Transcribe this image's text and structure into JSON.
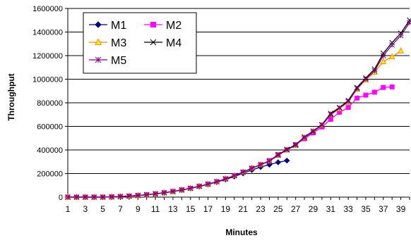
{
  "chart_data": {
    "type": "line",
    "title": "",
    "xlabel": "Minutes",
    "ylabel": "Throughput",
    "ylim": [
      0,
      1600000
    ],
    "yticks": [
      0,
      200000,
      400000,
      600000,
      800000,
      1000000,
      1200000,
      1400000,
      1600000
    ],
    "ytick_labels": [
      "0",
      "200000",
      "400000",
      "600000",
      "800000",
      "1000000",
      "1200000",
      "1400000",
      "1600000"
    ],
    "x": [
      1,
      2,
      3,
      4,
      5,
      6,
      7,
      8,
      9,
      10,
      11,
      12,
      13,
      14,
      15,
      16,
      17,
      18,
      19,
      20,
      21,
      22,
      23,
      24,
      25,
      26,
      27,
      28,
      29,
      30,
      31,
      32,
      33,
      34,
      35,
      36,
      37,
      38,
      39,
      40
    ],
    "xtick_labels": [
      "1",
      "3",
      "5",
      "7",
      "9",
      "11",
      "13",
      "15",
      "17",
      "19",
      "21",
      "23",
      "25",
      "27",
      "29",
      "31",
      "33",
      "35",
      "37",
      "39"
    ],
    "grid": "horizontal",
    "legend_position": "top-left",
    "series": [
      {
        "name": "M1",
        "color": "#000080",
        "marker": "diamond",
        "values": [
          0,
          0,
          0,
          0,
          0,
          2000,
          5000,
          9000,
          14000,
          20000,
          28000,
          37000,
          48000,
          60000,
          74000,
          90000,
          108000,
          128000,
          150000,
          175000,
          202000,
          230000,
          255000,
          275000,
          295000,
          310000,
          null,
          null,
          null,
          null,
          null,
          null,
          null,
          null,
          null,
          null,
          null,
          null,
          null,
          null
        ]
      },
      {
        "name": "M2",
        "color": "#ff00ff",
        "marker": "square",
        "values": [
          0,
          0,
          0,
          0,
          0,
          2000,
          5000,
          9000,
          14000,
          20000,
          28000,
          37000,
          48000,
          61000,
          75000,
          92000,
          110000,
          131000,
          155000,
          182000,
          212000,
          245000,
          275000,
          310000,
          360000,
          400000,
          445000,
          495000,
          545000,
          595000,
          660000,
          720000,
          760000,
          840000,
          865000,
          890000,
          930000,
          935000,
          null,
          null
        ]
      },
      {
        "name": "M3",
        "color": "#ff8000",
        "fill": "#ffff00",
        "marker": "triangle",
        "values": [
          0,
          0,
          0,
          0,
          0,
          2000,
          5000,
          9000,
          14000,
          20000,
          28000,
          37000,
          48000,
          61000,
          75000,
          92000,
          110000,
          131000,
          155000,
          182000,
          212000,
          245000,
          275000,
          305000,
          355000,
          400000,
          440000,
          505000,
          560000,
          610000,
          700000,
          750000,
          805000,
          915000,
          995000,
          1060000,
          1150000,
          1190000,
          1240000,
          null
        ]
      },
      {
        "name": "M4",
        "color": "#000000",
        "marker": "x",
        "values": [
          0,
          0,
          0,
          0,
          0,
          2000,
          5000,
          9000,
          14000,
          20000,
          28000,
          37000,
          48000,
          61000,
          75000,
          92000,
          110000,
          131000,
          155000,
          182000,
          212000,
          245000,
          275000,
          305000,
          360000,
          405000,
          445000,
          510000,
          560000,
          615000,
          710000,
          760000,
          820000,
          930000,
          1010000,
          1085000,
          1220000,
          1310000,
          1390000,
          1500000
        ]
      },
      {
        "name": "M5",
        "color": "#800080",
        "marker": "star",
        "values": [
          0,
          0,
          0,
          0,
          0,
          2000,
          5000,
          9000,
          14000,
          20000,
          28000,
          37000,
          48000,
          61000,
          75000,
          92000,
          110000,
          131000,
          155000,
          182000,
          212000,
          245000,
          275000,
          305000,
          355000,
          400000,
          440000,
          505000,
          555000,
          610000,
          700000,
          755000,
          810000,
          920000,
          1000000,
          1070000,
          1200000,
          1290000,
          1370000,
          1480000
        ]
      }
    ]
  }
}
